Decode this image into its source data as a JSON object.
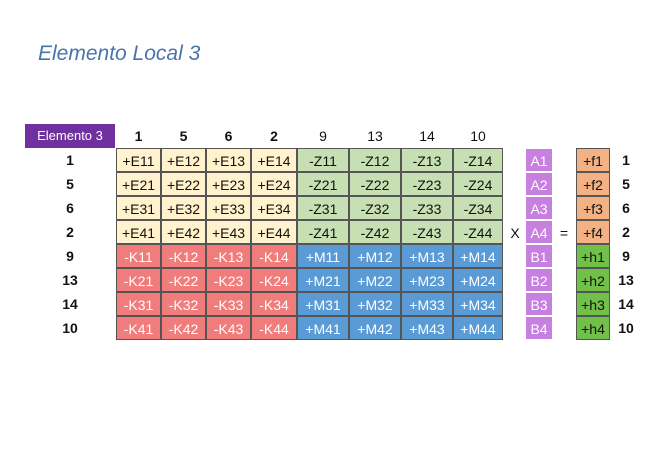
{
  "title": "Elemento Local 3",
  "badge": "Elemento 3",
  "col_headers": [
    "1",
    "5",
    "6",
    "2",
    "9",
    "13",
    "14",
    "10"
  ],
  "row_headers": [
    "1",
    "5",
    "6",
    "2",
    "9",
    "13",
    "14",
    "10"
  ],
  "matrix": [
    [
      "+E11",
      "+E12",
      "+E13",
      "+E14",
      "-Z11",
      "-Z12",
      "-Z13",
      "-Z14"
    ],
    [
      "+E21",
      "+E22",
      "+E23",
      "+E24",
      "-Z21",
      "-Z22",
      "-Z23",
      "-Z24"
    ],
    [
      "+E31",
      "+E32",
      "+E33",
      "+E34",
      "-Z31",
      "-Z32",
      "-Z33",
      "-Z34"
    ],
    [
      "+E41",
      "+E42",
      "+E43",
      "+E44",
      "-Z41",
      "-Z42",
      "-Z43",
      "-Z44"
    ],
    [
      "-K11",
      "-K12",
      "-K13",
      "-K14",
      "+M11",
      "+M12",
      "+M13",
      "+M14"
    ],
    [
      "-K21",
      "-K22",
      "-K23",
      "-K24",
      "+M21",
      "+M22",
      "+M23",
      "+M24"
    ],
    [
      "-K31",
      "-K32",
      "-K33",
      "-K34",
      "+M31",
      "+M32",
      "+M33",
      "+M34"
    ],
    [
      "-K41",
      "-K42",
      "-K43",
      "-K44",
      "+M41",
      "+M42",
      "+M43",
      "+M44"
    ]
  ],
  "vector_x": [
    "A1",
    "A2",
    "A3",
    "A4",
    "B1",
    "B2",
    "B3",
    "B4"
  ],
  "operator_times": "X",
  "operator_equals": "=",
  "vector_rhs": [
    "+f1",
    "+f2",
    "+f3",
    "+f4",
    "+h1",
    "+h2",
    "+h3",
    "+h4"
  ],
  "right_labels": [
    "1",
    "5",
    "6",
    "2",
    "9",
    "13",
    "14",
    "10"
  ],
  "colors": {
    "badge": "#7030a0",
    "title": "#4a73ad",
    "E": "#fff2cc",
    "Z": "#c6e0b4",
    "K": "#f07c7c",
    "M": "#5b9bd5",
    "A": "#c77fe0",
    "f": "#f4b183",
    "h": "#70c04a"
  }
}
